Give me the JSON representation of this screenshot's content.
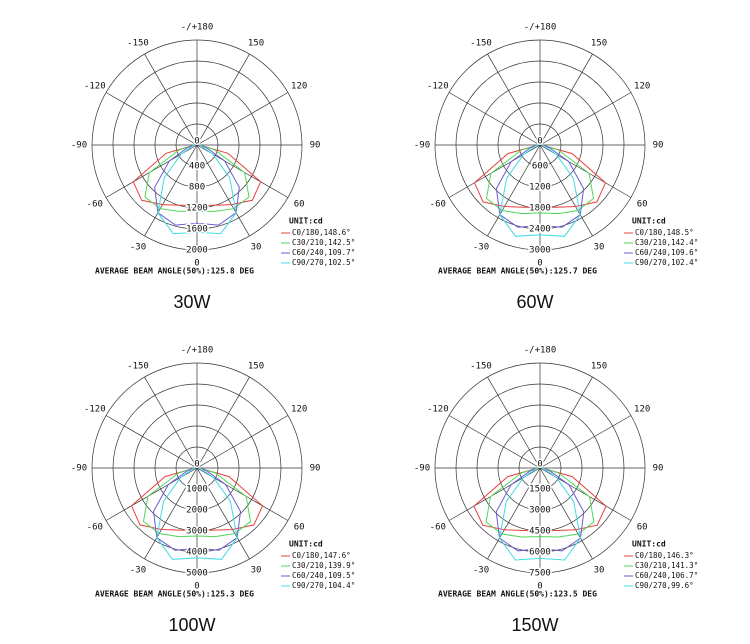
{
  "chart_data": [
    {
      "type": "polar",
      "title": "30W",
      "unit": "UNIT:cd",
      "note": "AVERAGE BEAM ANGLE(50%):125.8 DEG",
      "angles": [
        -90,
        -75,
        -60,
        -45,
        -30,
        -15,
        0,
        15,
        30,
        45,
        60,
        75,
        90
      ],
      "angle_ticks": [
        -150,
        -120,
        -90,
        -60,
        -30,
        0,
        30,
        60,
        90,
        120,
        150,
        {
          "value": 180,
          "label": "-/+180"
        }
      ],
      "rlim": [
        0,
        2000
      ],
      "rticks": [
        0,
        400,
        800,
        1200,
        1600,
        2000
      ],
      "series": [
        {
          "name": "C0/180,148.6°",
          "color": "#e8413c",
          "values": [
            40,
            610,
            1400,
            1490,
            1310,
            1190,
            1160,
            1190,
            1310,
            1490,
            1400,
            610,
            40
          ]
        },
        {
          "name": "C30/210,142.5°",
          "color": "#4fd65a",
          "values": [
            40,
            350,
            1050,
            1400,
            1400,
            1310,
            1260,
            1310,
            1400,
            1400,
            1050,
            350,
            40
          ]
        },
        {
          "name": "C60/240,109.7°",
          "color": "#6b5bd6",
          "values": [
            40,
            180,
            610,
            1140,
            1490,
            1580,
            1490,
            1580,
            1490,
            1140,
            610,
            180,
            40
          ]
        },
        {
          "name": "C90/270,102.5°",
          "color": "#3fdce6",
          "values": [
            40,
            90,
            350,
            880,
            1490,
            1750,
            1660,
            1750,
            1490,
            880,
            350,
            90,
            40
          ]
        }
      ]
    },
    {
      "type": "polar",
      "title": "60W",
      "unit": "UNIT:cd",
      "note": "AVERAGE BEAM ANGLE(50%):125.7 DEG",
      "angles": [
        -90,
        -75,
        -60,
        -45,
        -30,
        -15,
        0,
        15,
        30,
        45,
        60,
        75,
        90
      ],
      "angle_ticks": [
        -150,
        -120,
        -90,
        -60,
        -30,
        0,
        30,
        60,
        90,
        120,
        150,
        {
          "value": 180,
          "label": "-/+180"
        }
      ],
      "rlim": [
        0,
        3000
      ],
      "rticks": [
        0,
        600,
        1200,
        1800,
        2400,
        3000
      ],
      "series": [
        {
          "name": "C0/180,148.5°",
          "color": "#e8413c",
          "values": [
            50,
            950,
            2160,
            2300,
            2030,
            1840,
            1780,
            1840,
            2030,
            2300,
            2160,
            950,
            50
          ]
        },
        {
          "name": "C30/210,142.4°",
          "color": "#4fd65a",
          "values": [
            50,
            540,
            1620,
            2160,
            2160,
            2030,
            1940,
            2030,
            2160,
            2160,
            1620,
            540,
            50
          ]
        },
        {
          "name": "C60/240,109.6°",
          "color": "#6b5bd6",
          "values": [
            50,
            270,
            950,
            1760,
            2300,
            2430,
            2300,
            2430,
            2300,
            1760,
            950,
            270,
            50
          ]
        },
        {
          "name": "C90/270,102.4°",
          "color": "#3fdce6",
          "values": [
            50,
            140,
            540,
            1350,
            2300,
            2700,
            2570,
            2700,
            2300,
            1350,
            540,
            140,
            50
          ]
        }
      ]
    },
    {
      "type": "polar",
      "title": "100W",
      "unit": "UNIT:cd",
      "note": "AVERAGE BEAM ANGLE(50%):125.3 DEG",
      "angles": [
        -90,
        -75,
        -60,
        -45,
        -30,
        -15,
        0,
        15,
        30,
        45,
        60,
        75,
        90
      ],
      "angle_ticks": [
        -150,
        -120,
        -90,
        -60,
        -30,
        0,
        30,
        60,
        90,
        120,
        150,
        {
          "value": 180,
          "label": "-/+180"
        }
      ],
      "rlim": [
        0,
        5000
      ],
      "rticks": [
        0,
        1000,
        2000,
        3000,
        4000,
        5000
      ],
      "series": [
        {
          "name": "C0/180,147.6°",
          "color": "#e8413c",
          "values": [
            90,
            1580,
            3600,
            3830,
            3380,
            3060,
            2970,
            3060,
            3380,
            3830,
            3600,
            1580,
            90
          ]
        },
        {
          "name": "C30/210,139.9°",
          "color": "#4fd65a",
          "values": [
            90,
            900,
            2700,
            3600,
            3600,
            3380,
            3240,
            3380,
            3600,
            3600,
            2700,
            900,
            90
          ]
        },
        {
          "name": "C60/240,109.5°",
          "color": "#6b5bd6",
          "values": [
            90,
            450,
            1580,
            2930,
            3830,
            4050,
            3830,
            4050,
            3830,
            2930,
            1580,
            450,
            90
          ]
        },
        {
          "name": "C90/270,104.4°",
          "color": "#3fdce6",
          "values": [
            90,
            230,
            900,
            2250,
            3830,
            4500,
            4280,
            4500,
            3830,
            2250,
            900,
            230,
            90
          ]
        }
      ]
    },
    {
      "type": "polar",
      "title": "150W",
      "unit": "UNIT:cd",
      "note": "AVERAGE BEAM ANGLE(50%):123.5 DEG",
      "angles": [
        -90,
        -75,
        -60,
        -45,
        -30,
        -15,
        0,
        15,
        30,
        45,
        60,
        75,
        90
      ],
      "angle_ticks": [
        -150,
        -120,
        -90,
        -60,
        -30,
        0,
        30,
        60,
        90,
        120,
        150,
        {
          "value": 180,
          "label": "-/+180"
        }
      ],
      "rlim": [
        0,
        7500
      ],
      "rticks": [
        0,
        1500,
        3000,
        4500,
        6000,
        7500
      ],
      "series": [
        {
          "name": "C0/180,146.3°",
          "color": "#e8413c",
          "values": [
            140,
            2380,
            5440,
            5780,
            5100,
            4620,
            4490,
            4620,
            5100,
            5780,
            5440,
            2380,
            140
          ]
        },
        {
          "name": "C30/210,141.3°",
          "color": "#4fd65a",
          "values": [
            140,
            1360,
            4080,
            5440,
            5440,
            5100,
            4900,
            5100,
            5440,
            5440,
            4080,
            1360,
            140
          ]
        },
        {
          "name": "C60/240,106.7°",
          "color": "#6b5bd6",
          "values": [
            140,
            680,
            2380,
            4420,
            5780,
            6120,
            5780,
            6120,
            5780,
            4420,
            2380,
            680,
            140
          ]
        },
        {
          "name": "C90/270,99.6°",
          "color": "#3fdce6",
          "values": [
            140,
            340,
            1360,
            3400,
            5780,
            6800,
            6460,
            6800,
            5780,
            3400,
            1360,
            340,
            140
          ]
        }
      ]
    }
  ]
}
